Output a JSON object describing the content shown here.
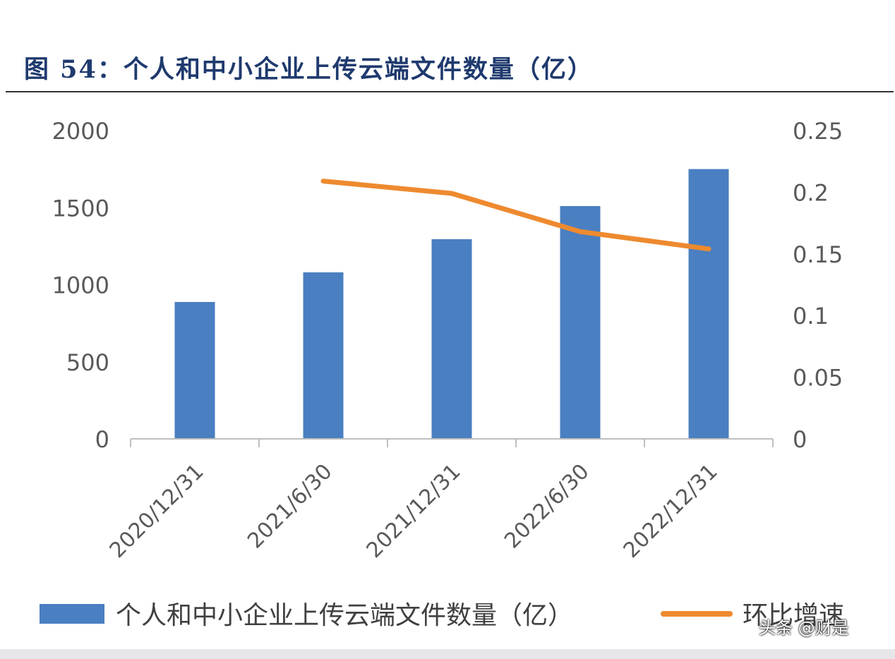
{
  "figure_title": "图 54：个人和中小企业上传云端文件数量（亿）",
  "watermark": "头条 @财是",
  "colors": {
    "bar": "#4a7fc1",
    "line": "#ee8a2f",
    "axis": "#bfbfbf",
    "title": "#1f3a6e"
  },
  "chart_data": {
    "type": "bar",
    "categories": [
      "2020/12/31",
      "2021/6/30",
      "2021/12/31",
      "2022/6/30",
      "2022/12/31"
    ],
    "series": [
      {
        "name": "个人和中小企业上传云端文件数量（亿）",
        "type": "bar",
        "axis": "left",
        "values": [
          888,
          1080,
          1295,
          1510,
          1750
        ]
      },
      {
        "name": "环比增速",
        "type": "line",
        "axis": "right",
        "values": [
          null,
          0.209,
          0.199,
          0.168,
          0.154
        ]
      }
    ],
    "ylim_left": [
      0,
      2000
    ],
    "yticks_left": [
      "0",
      "500",
      "1000",
      "1500",
      "2000"
    ],
    "ylim_right": [
      0,
      0.25
    ],
    "yticks_right": [
      "0",
      "0.05",
      "0.1",
      "0.15",
      "0.2",
      "0.25"
    ],
    "grid": false,
    "legend_position": "bottom"
  }
}
